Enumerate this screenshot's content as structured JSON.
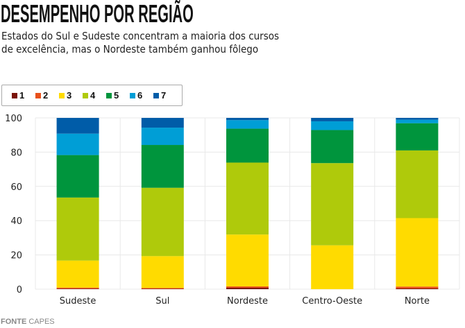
{
  "title": "DESEMPENHO POR REGIÃO",
  "subtitle_lines": [
    "Estados do Sul e Sudeste concentram a maioria dos cursos",
    "de excelência, mas o Nordeste também ganhou fôlego"
  ],
  "source": {
    "label": "FONTE",
    "value": "CAPES"
  },
  "chart_data": {
    "type": "bar",
    "stacked": true,
    "title": "DESEMPENHO POR REGIÃO",
    "xlabel": "",
    "ylabel": "",
    "ylim": [
      0,
      100
    ],
    "yticks": [
      "0",
      "20",
      "40",
      "60",
      "80",
      "100"
    ],
    "grid": true,
    "legend_position": "top-left",
    "categories": [
      "Sudeste",
      "Sul",
      "Nordeste",
      "Centro-Oeste",
      "Norte"
    ],
    "series": [
      {
        "name": "1",
        "color": "#7a1208",
        "values": [
          0.3,
          0.2,
          0.8,
          0.0,
          0.4
        ]
      },
      {
        "name": "2",
        "color": "#e8501a",
        "values": [
          0.6,
          0.5,
          0.8,
          0.0,
          1.1
        ]
      },
      {
        "name": "3",
        "color": "#ffdb00",
        "values": [
          15.8,
          18.6,
          30.3,
          25.6,
          40.0
        ]
      },
      {
        "name": "4",
        "color": "#afca0b",
        "values": [
          36.8,
          39.9,
          42.0,
          48.0,
          39.5
        ]
      },
      {
        "name": "5",
        "color": "#00953d",
        "values": [
          24.8,
          25.0,
          19.8,
          19.3,
          15.9
        ]
      },
      {
        "name": "6",
        "color": "#009ed6",
        "values": [
          12.5,
          10.1,
          5.0,
          5.1,
          2.0
        ]
      },
      {
        "name": "7",
        "color": "#005ca8",
        "values": [
          9.2,
          5.7,
          1.3,
          2.0,
          1.1
        ]
      }
    ]
  }
}
